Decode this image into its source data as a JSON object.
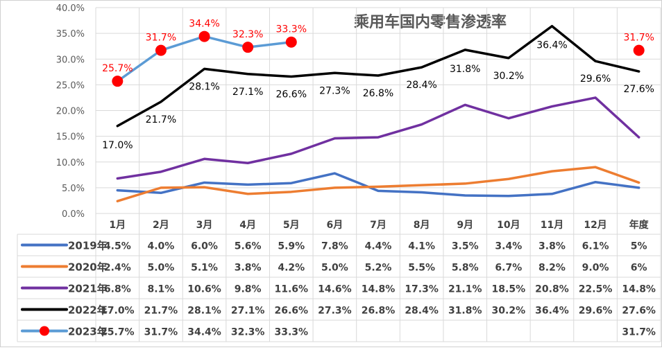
{
  "chart_data": {
    "type": "line",
    "title": "乘用车国内零售渗透率",
    "xlabel": "",
    "ylabel": "",
    "y_axis_ticks": [
      "0.0%",
      "5.0%",
      "10.0%",
      "15.0%",
      "20.0%",
      "25.0%",
      "30.0%",
      "35.0%",
      "40.0%"
    ],
    "ylim": [
      0,
      40
    ],
    "grid": true,
    "legend_placement": "data-table-left",
    "categories": [
      "1月",
      "2月",
      "3月",
      "4月",
      "5月",
      "6月",
      "7月",
      "8月",
      "9月",
      "10月",
      "11月",
      "12月",
      "年度"
    ],
    "series": [
      {
        "name": "2019年",
        "color": "#4472C4",
        "values": [
          4.5,
          4.0,
          6.0,
          5.6,
          5.9,
          7.8,
          4.4,
          4.1,
          3.5,
          3.4,
          3.8,
          6.1,
          5
        ],
        "table": [
          "4.5%",
          "4.0%",
          "6.0%",
          "5.6%",
          "5.9%",
          "7.8%",
          "4.4%",
          "4.1%",
          "3.5%",
          "3.4%",
          "3.8%",
          "6.1%",
          "5%"
        ]
      },
      {
        "name": "2020年",
        "color": "#ED7D31",
        "values": [
          2.4,
          5.0,
          5.1,
          3.8,
          4.2,
          5.0,
          5.2,
          5.5,
          5.8,
          6.7,
          8.2,
          9.0,
          6
        ],
        "table": [
          "2.4%",
          "5.0%",
          "5.1%",
          "3.8%",
          "4.2%",
          "5.0%",
          "5.2%",
          "5.5%",
          "5.8%",
          "6.7%",
          "8.2%",
          "9.0%",
          "6%"
        ]
      },
      {
        "name": "2021年",
        "color": "#7030A0",
        "values": [
          6.8,
          8.1,
          10.6,
          9.8,
          11.6,
          14.6,
          14.8,
          17.3,
          21.1,
          18.5,
          20.8,
          22.5,
          14.8
        ],
        "table": [
          "6.8%",
          "8.1%",
          "10.6%",
          "9.8%",
          "11.6%",
          "14.6%",
          "14.8%",
          "17.3%",
          "21.1%",
          "18.5%",
          "20.8%",
          "22.5%",
          "14.8%"
        ]
      },
      {
        "name": "2022年",
        "color": "#000000",
        "values": [
          17.0,
          21.7,
          28.1,
          27.1,
          26.6,
          27.3,
          26.8,
          28.4,
          31.8,
          30.2,
          36.4,
          29.6,
          27.6
        ],
        "table": [
          "17.0%",
          "21.7%",
          "28.1%",
          "27.1%",
          "26.6%",
          "27.3%",
          "26.8%",
          "28.4%",
          "31.8%",
          "30.2%",
          "36.4%",
          "29.6%",
          "27.6%"
        ],
        "data_labels": [
          "17.0%",
          "21.7%",
          "28.1%",
          "27.1%",
          "26.6%",
          "27.3%",
          "26.8%",
          "28.4%",
          "31.8%",
          "30.2%",
          "36.4%",
          "29.6%",
          "27.6%"
        ]
      },
      {
        "name": "2023年",
        "color": "#5B9BD5",
        "marker_color": "#FF0000",
        "values": [
          25.7,
          31.7,
          34.4,
          32.3,
          33.3,
          null,
          null,
          null,
          null,
          null,
          null,
          null,
          31.7
        ],
        "table": [
          "25.7%",
          "31.7%",
          "34.4%",
          "32.3%",
          "33.3%",
          "",
          "",
          "",
          "",
          "",
          "",
          "",
          "31.7%"
        ],
        "data_labels": [
          "25.7%",
          "31.7%",
          "34.4%",
          "32.3%",
          "33.3%",
          "",
          "",
          "",
          "",
          "",
          "",
          "",
          "31.7%"
        ]
      }
    ]
  }
}
